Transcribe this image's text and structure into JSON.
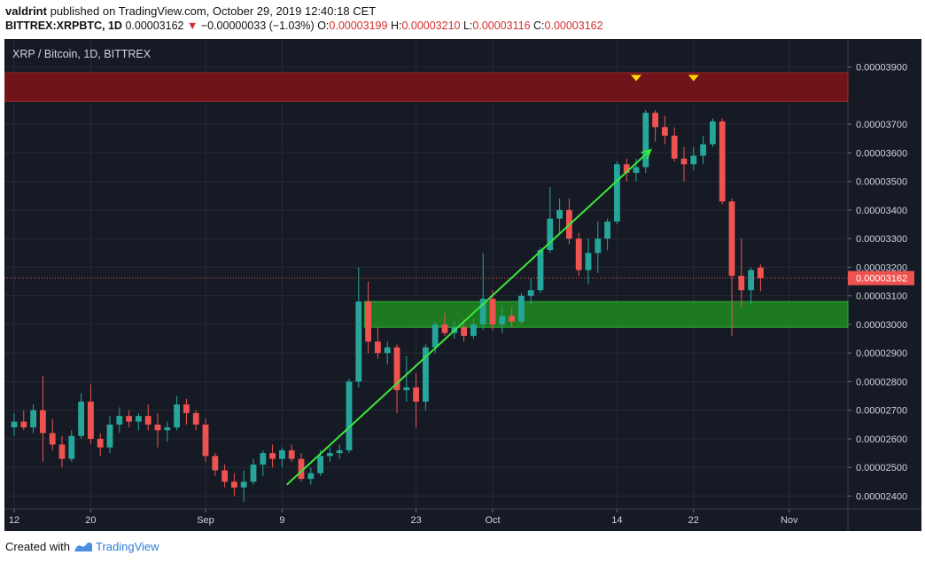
{
  "header": {
    "author": "valdrint",
    "published_text": "published on TradingView.com, October 29, 2019 12:40:18 CET",
    "symbol": "BITTREX:XRPBTC, 1D",
    "last": "0.00003162",
    "change": "−0.00000033 (−1.03%)",
    "o_label": "O:",
    "o_value": "0.00003199",
    "h_label": "H:",
    "h_value": "0.00003210",
    "l_label": "L:",
    "l_value": "0.00003116",
    "c_label": "C:",
    "c_value": "0.00003162"
  },
  "footer": {
    "created_with": "Created with",
    "brand": "TradingView"
  },
  "colors": {
    "background": "#161a25",
    "grid": "#252a36",
    "up": "#26a69a",
    "down": "#ef5350",
    "resistance_zone": "#7a1418",
    "support_zone": "#1e8c1e",
    "trendline": "#3ae83a",
    "marker": "#ffd700",
    "price_tag": "#ef5350"
  },
  "chart_data": {
    "type": "candlestick",
    "title": "XRP / Bitcoin, 1D, BITTREX",
    "ylim": [
      2.355e-05,
      3.998e-05
    ],
    "y_ticks": [
      "0.00002400",
      "0.00002500",
      "0.00002600",
      "0.00002700",
      "0.00002800",
      "0.00002900",
      "0.00003000",
      "0.00003100",
      "0.00003200",
      "0.00003300",
      "0.00003400",
      "0.00003500",
      "0.00003600",
      "0.00003700",
      "0.00003900"
    ],
    "x_ticks": [
      {
        "label": "12",
        "index": 0
      },
      {
        "label": "20",
        "index": 8
      },
      {
        "label": "Sep",
        "index": 20
      },
      {
        "label": "9",
        "index": 28
      },
      {
        "label": "23",
        "index": 42
      },
      {
        "label": "Oct",
        "index": 50
      },
      {
        "label": "14",
        "index": 63
      },
      {
        "label": "22",
        "index": 71
      },
      {
        "label": "Nov",
        "index": 81
      }
    ],
    "last_price": "0.00003162",
    "candles": [
      {
        "o": 2.64e-05,
        "h": 2.69e-05,
        "l": 2.61e-05,
        "c": 2.66e-05
      },
      {
        "o": 2.66e-05,
        "h": 2.7e-05,
        "l": 2.63e-05,
        "c": 2.64e-05
      },
      {
        "o": 2.64e-05,
        "h": 2.72e-05,
        "l": 2.62e-05,
        "c": 2.7e-05
      },
      {
        "o": 2.7e-05,
        "h": 2.82e-05,
        "l": 2.52e-05,
        "c": 2.62e-05
      },
      {
        "o": 2.62e-05,
        "h": 2.67e-05,
        "l": 2.56e-05,
        "c": 2.58e-05
      },
      {
        "o": 2.58e-05,
        "h": 2.61e-05,
        "l": 2.5e-05,
        "c": 2.53e-05
      },
      {
        "o": 2.53e-05,
        "h": 2.63e-05,
        "l": 2.52e-05,
        "c": 2.61e-05
      },
      {
        "o": 2.61e-05,
        "h": 2.76e-05,
        "l": 2.6e-05,
        "c": 2.73e-05
      },
      {
        "o": 2.73e-05,
        "h": 2.79e-05,
        "l": 2.58e-05,
        "c": 2.6e-05
      },
      {
        "o": 2.6e-05,
        "h": 2.62e-05,
        "l": 2.54e-05,
        "c": 2.57e-05
      },
      {
        "o": 2.57e-05,
        "h": 2.68e-05,
        "l": 2.55e-05,
        "c": 2.65e-05
      },
      {
        "o": 2.65e-05,
        "h": 2.71e-05,
        "l": 2.62e-05,
        "c": 2.68e-05
      },
      {
        "o": 2.68e-05,
        "h": 2.7e-05,
        "l": 2.64e-05,
        "c": 2.66e-05
      },
      {
        "o": 2.66e-05,
        "h": 2.69e-05,
        "l": 2.63e-05,
        "c": 2.68e-05
      },
      {
        "o": 2.68e-05,
        "h": 2.72e-05,
        "l": 2.63e-05,
        "c": 2.65e-05
      },
      {
        "o": 2.65e-05,
        "h": 2.69e-05,
        "l": 2.57e-05,
        "c": 2.63e-05
      },
      {
        "o": 2.63e-05,
        "h": 2.66e-05,
        "l": 2.59e-05,
        "c": 2.64e-05
      },
      {
        "o": 2.64e-05,
        "h": 2.75e-05,
        "l": 2.63e-05,
        "c": 2.72e-05
      },
      {
        "o": 2.72e-05,
        "h": 2.74e-05,
        "l": 2.65e-05,
        "c": 2.69e-05
      },
      {
        "o": 2.69e-05,
        "h": 2.7e-05,
        "l": 2.63e-05,
        "c": 2.65e-05
      },
      {
        "o": 2.65e-05,
        "h": 2.67e-05,
        "l": 2.52e-05,
        "c": 2.54e-05
      },
      {
        "o": 2.54e-05,
        "h": 2.55e-05,
        "l": 2.47e-05,
        "c": 2.49e-05
      },
      {
        "o": 2.49e-05,
        "h": 2.51e-05,
        "l": 2.43e-05,
        "c": 2.45e-05
      },
      {
        "o": 2.45e-05,
        "h": 2.48e-05,
        "l": 2.4e-05,
        "c": 2.43e-05
      },
      {
        "o": 2.43e-05,
        "h": 2.49e-05,
        "l": 2.38e-05,
        "c": 2.45e-05
      },
      {
        "o": 2.45e-05,
        "h": 2.53e-05,
        "l": 2.44e-05,
        "c": 2.51e-05
      },
      {
        "o": 2.51e-05,
        "h": 2.56e-05,
        "l": 2.47e-05,
        "c": 2.55e-05
      },
      {
        "o": 2.55e-05,
        "h": 2.58e-05,
        "l": 2.5e-05,
        "c": 2.53e-05
      },
      {
        "o": 2.53e-05,
        "h": 2.57e-05,
        "l": 2.5e-05,
        "c": 2.56e-05
      },
      {
        "o": 2.56e-05,
        "h": 2.58e-05,
        "l": 2.52e-05,
        "c": 2.53e-05
      },
      {
        "o": 2.53e-05,
        "h": 2.55e-05,
        "l": 2.45e-05,
        "c": 2.46e-05
      },
      {
        "o": 2.46e-05,
        "h": 2.5e-05,
        "l": 2.44e-05,
        "c": 2.48e-05
      },
      {
        "o": 2.48e-05,
        "h": 2.56e-05,
        "l": 2.47e-05,
        "c": 2.54e-05
      },
      {
        "o": 2.54e-05,
        "h": 2.57e-05,
        "l": 2.52e-05,
        "c": 2.55e-05
      },
      {
        "o": 2.55e-05,
        "h": 2.58e-05,
        "l": 2.53e-05,
        "c": 2.56e-05
      },
      {
        "o": 2.56e-05,
        "h": 2.81e-05,
        "l": 2.55e-05,
        "c": 2.8e-05
      },
      {
        "o": 2.8e-05,
        "h": 3.2e-05,
        "l": 2.78e-05,
        "c": 3.08e-05
      },
      {
        "o": 3.08e-05,
        "h": 3.15e-05,
        "l": 2.9e-05,
        "c": 2.94e-05
      },
      {
        "o": 2.94e-05,
        "h": 2.99e-05,
        "l": 2.88e-05,
        "c": 2.9e-05
      },
      {
        "o": 2.9e-05,
        "h": 2.94e-05,
        "l": 2.86e-05,
        "c": 2.92e-05
      },
      {
        "o": 2.92e-05,
        "h": 2.93e-05,
        "l": 2.69e-05,
        "c": 2.77e-05
      },
      {
        "o": 2.77e-05,
        "h": 2.89e-05,
        "l": 2.73e-05,
        "c": 2.78e-05
      },
      {
        "o": 2.78e-05,
        "h": 2.83e-05,
        "l": 2.64e-05,
        "c": 2.73e-05
      },
      {
        "o": 2.73e-05,
        "h": 2.93e-05,
        "l": 2.7e-05,
        "c": 2.92e-05
      },
      {
        "o": 2.92e-05,
        "h": 3.01e-05,
        "l": 2.9e-05,
        "c": 3e-05
      },
      {
        "o": 3e-05,
        "h": 3.04e-05,
        "l": 2.96e-05,
        "c": 2.97e-05
      },
      {
        "o": 2.97e-05,
        "h": 3.01e-05,
        "l": 2.95e-05,
        "c": 2.99e-05
      },
      {
        "o": 2.99e-05,
        "h": 3.02e-05,
        "l": 2.94e-05,
        "c": 2.96e-05
      },
      {
        "o": 2.96e-05,
        "h": 3.02e-05,
        "l": 2.95e-05,
        "c": 3e-05
      },
      {
        "o": 3e-05,
        "h": 3.25e-05,
        "l": 2.98e-05,
        "c": 3.09e-05
      },
      {
        "o": 3.09e-05,
        "h": 3.12e-05,
        "l": 2.98e-05,
        "c": 3e-05
      },
      {
        "o": 3e-05,
        "h": 3.06e-05,
        "l": 2.97e-05,
        "c": 3.03e-05
      },
      {
        "o": 3.03e-05,
        "h": 3.06e-05,
        "l": 2.99e-05,
        "c": 3.01e-05
      },
      {
        "o": 3.01e-05,
        "h": 3.11e-05,
        "l": 3e-05,
        "c": 3.1e-05
      },
      {
        "o": 3.1e-05,
        "h": 3.16e-05,
        "l": 3.07e-05,
        "c": 3.12e-05
      },
      {
        "o": 3.12e-05,
        "h": 3.27e-05,
        "l": 3.11e-05,
        "c": 3.26e-05
      },
      {
        "o": 3.26e-05,
        "h": 3.48e-05,
        "l": 3.25e-05,
        "c": 3.37e-05
      },
      {
        "o": 3.37e-05,
        "h": 3.44e-05,
        "l": 3.32e-05,
        "c": 3.4e-05
      },
      {
        "o": 3.4e-05,
        "h": 3.44e-05,
        "l": 3.28e-05,
        "c": 3.3e-05
      },
      {
        "o": 3.3e-05,
        "h": 3.32e-05,
        "l": 3.17e-05,
        "c": 3.19e-05
      },
      {
        "o": 3.19e-05,
        "h": 3.3e-05,
        "l": 3.14e-05,
        "c": 3.25e-05
      },
      {
        "o": 3.25e-05,
        "h": 3.36e-05,
        "l": 3.18e-05,
        "c": 3.3e-05
      },
      {
        "o": 3.3e-05,
        "h": 3.37e-05,
        "l": 3.26e-05,
        "c": 3.36e-05
      },
      {
        "o": 3.36e-05,
        "h": 3.57e-05,
        "l": 3.35e-05,
        "c": 3.56e-05
      },
      {
        "o": 3.56e-05,
        "h": 3.58e-05,
        "l": 3.5e-05,
        "c": 3.53e-05
      },
      {
        "o": 3.53e-05,
        "h": 3.58e-05,
        "l": 3.5e-05,
        "c": 3.55e-05
      },
      {
        "o": 3.55e-05,
        "h": 3.75e-05,
        "l": 3.53e-05,
        "c": 3.74e-05
      },
      {
        "o": 3.74e-05,
        "h": 3.75e-05,
        "l": 3.64e-05,
        "c": 3.69e-05
      },
      {
        "o": 3.69e-05,
        "h": 3.73e-05,
        "l": 3.63e-05,
        "c": 3.66e-05
      },
      {
        "o": 3.66e-05,
        "h": 3.69e-05,
        "l": 3.57e-05,
        "c": 3.58e-05
      },
      {
        "o": 3.58e-05,
        "h": 3.62e-05,
        "l": 3.5e-05,
        "c": 3.56e-05
      },
      {
        "o": 3.56e-05,
        "h": 3.62e-05,
        "l": 3.54e-05,
        "c": 3.59e-05
      },
      {
        "o": 3.59e-05,
        "h": 3.66e-05,
        "l": 3.56e-05,
        "c": 3.63e-05
      },
      {
        "o": 3.63e-05,
        "h": 3.72e-05,
        "l": 3.62e-05,
        "c": 3.71e-05
      },
      {
        "o": 3.71e-05,
        "h": 3.72e-05,
        "l": 3.42e-05,
        "c": 3.43e-05
      },
      {
        "o": 3.43e-05,
        "h": 3.44e-05,
        "l": 2.96e-05,
        "c": 3.17e-05
      },
      {
        "o": 3.17e-05,
        "h": 3.3e-05,
        "l": 3.06e-05,
        "c": 3.12e-05
      },
      {
        "o": 3.12e-05,
        "h": 3.2e-05,
        "l": 3.07e-05,
        "c": 3.19e-05
      },
      {
        "o": 3.199e-05,
        "h": 3.21e-05,
        "l": 3.116e-05,
        "c": 3.162e-05
      }
    ],
    "zones": [
      {
        "name": "resistance",
        "y_from": 3.78e-05,
        "y_to": 3.88e-05
      },
      {
        "name": "support",
        "y_from": 2.99e-05,
        "y_to": 3.08e-05
      }
    ],
    "trendline": {
      "from": {
        "index": 28.5,
        "y": 2.44e-05
      },
      "to": {
        "index": 66.5,
        "y": 3.61e-05
      }
    },
    "markers": [
      {
        "index": 65,
        "y": 3.86e-05
      },
      {
        "index": 71,
        "y": 3.86e-05
      }
    ]
  }
}
